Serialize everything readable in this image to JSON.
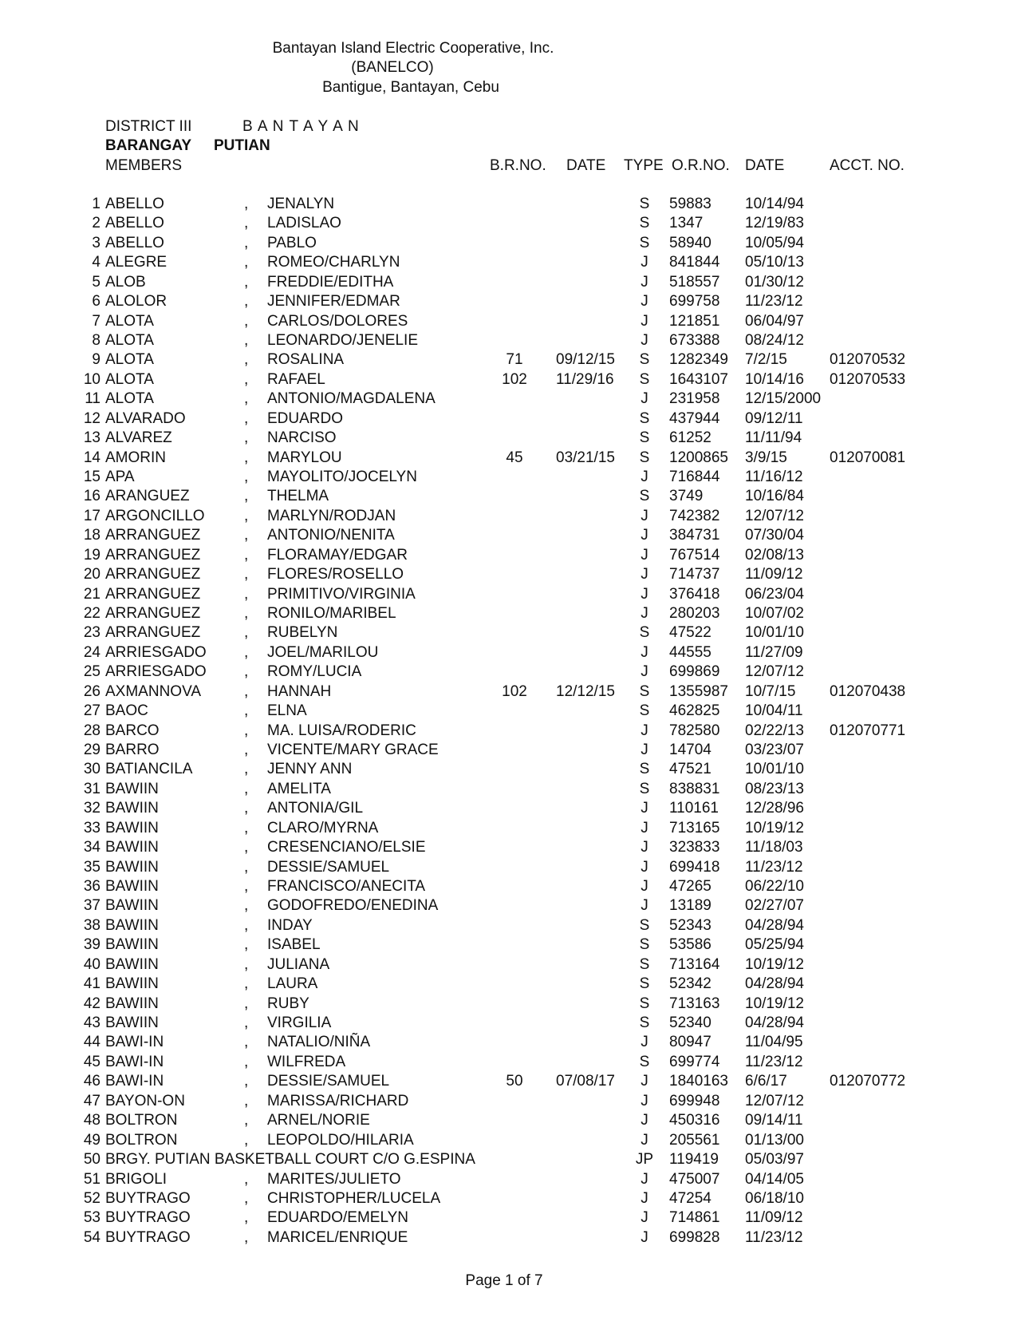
{
  "header": {
    "org": "Bantayan Island Electric Cooperative, Inc.",
    "abbr": "(BANELCO)",
    "address": "Bantigue, Bantayan, Cebu"
  },
  "district": {
    "label": "DISTRICT III",
    "value": "B A N T A Y A N"
  },
  "barangay": {
    "label": "BARANGAY",
    "value": "PUTIAN"
  },
  "columns": {
    "members": "MEMBERS",
    "br_no": "B.R.NO.",
    "br_date": "DATE",
    "type": "TYPE",
    "or_no": "O.R.NO.",
    "or_date": "DATE",
    "acct_no": "ACCT. NO."
  },
  "rows": [
    [
      "1",
      "ABELLO",
      ",",
      "JENALYN",
      "",
      "",
      "S",
      "59883",
      "10/14/94",
      ""
    ],
    [
      "2",
      "ABELLO",
      ",",
      "LADISLAO",
      "",
      "",
      "S",
      "1347",
      "12/19/83",
      ""
    ],
    [
      "3",
      "ABELLO",
      ",",
      "PABLO",
      "",
      "",
      "S",
      "58940",
      "10/05/94",
      ""
    ],
    [
      "4",
      "ALEGRE",
      ",",
      "ROMEO/CHARLYN",
      "",
      "",
      "J",
      "841844",
      "05/10/13",
      ""
    ],
    [
      "5",
      "ALOB",
      ",",
      "FREDDIE/EDITHA",
      "",
      "",
      "J",
      "518557",
      "01/30/12",
      ""
    ],
    [
      "6",
      "ALOLOR",
      ",",
      "JENNIFER/EDMAR",
      "",
      "",
      "J",
      "699758",
      "11/23/12",
      ""
    ],
    [
      "7",
      "ALOTA",
      ",",
      "CARLOS/DOLORES",
      "",
      "",
      "J",
      "121851",
      "06/04/97",
      ""
    ],
    [
      "8",
      "ALOTA",
      ",",
      "LEONARDO/JENELIE",
      "",
      "",
      "J",
      "673388",
      "08/24/12",
      ""
    ],
    [
      "9",
      "ALOTA",
      ",",
      "ROSALINA",
      "71",
      "09/12/15",
      "S",
      "1282349",
      "7/2/15",
      "012070532"
    ],
    [
      "10",
      "ALOTA",
      ",",
      "RAFAEL",
      "102",
      "11/29/16",
      "S",
      "1643107",
      "10/14/16",
      "012070533"
    ],
    [
      "11",
      "ALOTA",
      ",",
      "ANTONIO/MAGDALENA",
      "",
      "",
      "J",
      "231958",
      "12/15/2000",
      ""
    ],
    [
      "12",
      "ALVARADO",
      ",",
      "EDUARDO",
      "",
      "",
      "S",
      "437944",
      "09/12/11",
      ""
    ],
    [
      "13",
      "ALVAREZ",
      ",",
      "NARCISO",
      "",
      "",
      "S",
      "61252",
      "11/11/94",
      ""
    ],
    [
      "14",
      "AMORIN",
      ",",
      "MARYLOU",
      "45",
      "03/21/15",
      "S",
      "1200865",
      "3/9/15",
      "012070081"
    ],
    [
      "15",
      "APA",
      ",",
      "MAYOLITO/JOCELYN",
      "",
      "",
      "J",
      "716844",
      "11/16/12",
      ""
    ],
    [
      "16",
      "ARANGUEZ",
      ",",
      "THELMA",
      "",
      "",
      "S",
      "3749",
      "10/16/84",
      ""
    ],
    [
      "17",
      "ARGONCILLO",
      ",",
      "MARLYN/RODJAN",
      "",
      "",
      "J",
      "742382",
      "12/07/12",
      ""
    ],
    [
      "18",
      "ARRANGUEZ",
      ",",
      "ANTONIO/NENITA",
      "",
      "",
      "J",
      "384731",
      "07/30/04",
      ""
    ],
    [
      "19",
      "ARRANGUEZ",
      ",",
      "FLORAMAY/EDGAR",
      "",
      "",
      "J",
      "767514",
      "02/08/13",
      ""
    ],
    [
      "20",
      "ARRANGUEZ",
      ",",
      "FLORES/ROSELLO",
      "",
      "",
      "J",
      "714737",
      "11/09/12",
      ""
    ],
    [
      "21",
      "ARRANGUEZ",
      ",",
      "PRIMITIVO/VIRGINIA",
      "",
      "",
      "J",
      "376418",
      "06/23/04",
      ""
    ],
    [
      "22",
      "ARRANGUEZ",
      ",",
      "RONILO/MARIBEL",
      "",
      "",
      "J",
      "280203",
      "10/07/02",
      ""
    ],
    [
      "23",
      "ARRANGUEZ",
      ",",
      "RUBELYN",
      "",
      "",
      "S",
      "47522",
      "10/01/10",
      ""
    ],
    [
      "24",
      "ARRIESGADO",
      ",",
      "JOEL/MARILOU",
      "",
      "",
      "J",
      "44555",
      "11/27/09",
      ""
    ],
    [
      "25",
      "ARRIESGADO",
      ",",
      "ROMY/LUCIA",
      "",
      "",
      "J",
      "699869",
      "12/07/12",
      ""
    ],
    [
      "26",
      "AXMANNOVA",
      ",",
      "HANNAH",
      "102",
      "12/12/15",
      "S",
      "1355987",
      "10/7/15",
      "012070438"
    ],
    [
      "27",
      "BAOC",
      ",",
      "ELNA",
      "",
      "",
      "S",
      "462825",
      "10/04/11",
      ""
    ],
    [
      "28",
      "BARCO",
      ",",
      "MA. LUISA/RODERIC",
      "",
      "",
      "J",
      "782580",
      "02/22/13",
      "012070771"
    ],
    [
      "29",
      "BARRO",
      ",",
      "VICENTE/MARY GRACE",
      "",
      "",
      "J",
      "14704",
      "03/23/07",
      ""
    ],
    [
      "30",
      "BATIANCILA",
      ",",
      "JENNY ANN",
      "",
      "",
      "S",
      "47521",
      "10/01/10",
      ""
    ],
    [
      "31",
      "BAWIIN",
      ",",
      "AMELITA",
      "",
      "",
      "S",
      "838831",
      "08/23/13",
      ""
    ],
    [
      "32",
      "BAWIIN",
      ",",
      "ANTONIA/GIL",
      "",
      "",
      "J",
      "110161",
      "12/28/96",
      ""
    ],
    [
      "33",
      "BAWIIN",
      ",",
      "CLARO/MYRNA",
      "",
      "",
      "J",
      "713165",
      "10/19/12",
      ""
    ],
    [
      "34",
      "BAWIIN",
      ",",
      "CRESENCIANO/ELSIE",
      "",
      "",
      "J",
      "323833",
      "11/18/03",
      ""
    ],
    [
      "35",
      "BAWIIN",
      ",",
      "DESSIE/SAMUEL",
      "",
      "",
      "J",
      "699418",
      "11/23/12",
      ""
    ],
    [
      "36",
      "BAWIIN",
      ",",
      "FRANCISCO/ANECITA",
      "",
      "",
      "J",
      "47265",
      "06/22/10",
      ""
    ],
    [
      "37",
      "BAWIIN",
      ",",
      "GODOFREDO/ENEDINA",
      "",
      "",
      "J",
      "13189",
      "02/27/07",
      ""
    ],
    [
      "38",
      "BAWIIN",
      ",",
      "INDAY",
      "",
      "",
      "S",
      "52343",
      "04/28/94",
      ""
    ],
    [
      "39",
      "BAWIIN",
      ",",
      "ISABEL",
      "",
      "",
      "S",
      "53586",
      "05/25/94",
      ""
    ],
    [
      "40",
      "BAWIIN",
      ",",
      "JULIANA",
      "",
      "",
      "S",
      "713164",
      "10/19/12",
      ""
    ],
    [
      "41",
      "BAWIIN",
      ",",
      "LAURA",
      "",
      "",
      "S",
      "52342",
      "04/28/94",
      ""
    ],
    [
      "42",
      "BAWIIN",
      ",",
      "RUBY",
      "",
      "",
      "S",
      "713163",
      "10/19/12",
      ""
    ],
    [
      "43",
      "BAWIIN",
      ",",
      "VIRGILIA",
      "",
      "",
      "S",
      "52340",
      "04/28/94",
      ""
    ],
    [
      "44",
      "BAWI-IN",
      ",",
      "NATALIO/NIÑA",
      "",
      "",
      "J",
      "80947",
      "11/04/95",
      ""
    ],
    [
      "45",
      "BAWI-IN",
      ",",
      "WILFREDA",
      "",
      "",
      "S",
      "699774",
      "11/23/12",
      ""
    ],
    [
      "46",
      "BAWI-IN",
      ",",
      "DESSIE/SAMUEL",
      "50",
      "07/08/17",
      "J",
      "1840163",
      "6/6/17",
      "012070772"
    ],
    [
      "47",
      "BAYON-ON",
      ",",
      "MARISSA/RICHARD",
      "",
      "",
      "J",
      "699948",
      "12/07/12",
      ""
    ],
    [
      "48",
      "BOLTRON",
      ",",
      "ARNEL/NORIE",
      "",
      "",
      "J",
      "450316",
      "09/14/11",
      ""
    ],
    [
      "49",
      "BOLTRON",
      ",",
      "LEOPOLDO/HILARIA",
      "",
      "",
      "J",
      "205561",
      "01/13/00",
      ""
    ],
    [
      "50",
      "BRGY. PUTIAN BASKETBALL COURT C/O G.ESPINA",
      "",
      "",
      "",
      "",
      "JP",
      "119419",
      "05/03/97",
      ""
    ],
    [
      "51",
      "BRIGOLI",
      ",",
      "MARITES/JULIETO",
      "",
      "",
      "J",
      "475007",
      "04/14/05",
      ""
    ],
    [
      "52",
      "BUYTRAGO",
      ",",
      "CHRISTOPHER/LUCELA",
      "",
      "",
      "J",
      "47254",
      "06/18/10",
      ""
    ],
    [
      "53",
      "BUYTRAGO",
      ",",
      "EDUARDO/EMELYN",
      "",
      "",
      "J",
      "714861",
      "11/09/12",
      ""
    ],
    [
      "54",
      "BUYTRAGO",
      ",",
      "MARICEL/ENRIQUE",
      "",
      "",
      "J",
      "699828",
      "11/23/12",
      ""
    ]
  ],
  "footer": {
    "page": "Page 1 of 7"
  }
}
